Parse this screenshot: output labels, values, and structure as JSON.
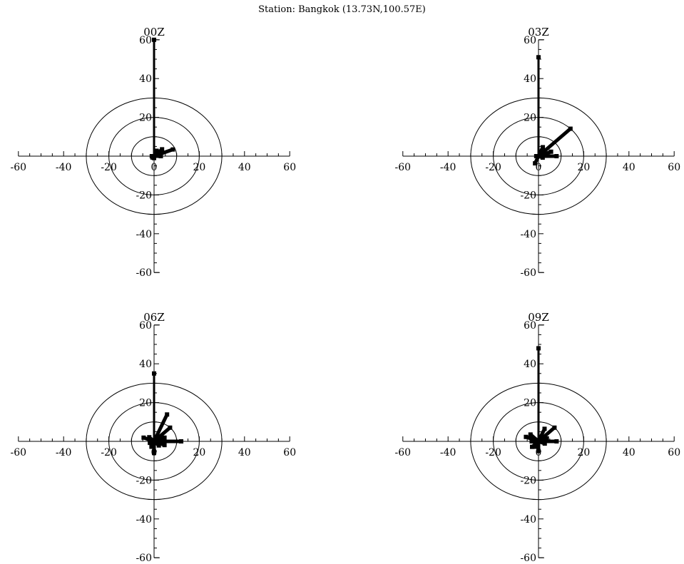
{
  "title": "Station: Bangkok (13.73N,100.57E)",
  "colors": {
    "ink": "#000000",
    "background": "#ffffff"
  },
  "chart_data": [
    {
      "type": "wind-rose",
      "panel_title": "00Z",
      "xlim": [
        -60,
        60
      ],
      "ylim": [
        -60,
        60
      ],
      "x_ticks": [
        -60,
        -40,
        -20,
        0,
        20,
        40,
        60
      ],
      "y_ticks": [
        -60,
        -40,
        -20,
        0,
        20,
        40,
        60
      ],
      "x_tick_labels": [
        "-60",
        "-40",
        "-20",
        "0",
        "20",
        "40",
        "60"
      ],
      "y_tick_labels": [
        "-60",
        "-40",
        "-20",
        "0",
        "20",
        "40",
        "60"
      ],
      "rings": [
        10,
        20,
        30
      ],
      "petals": [
        {
          "direction_deg": 0,
          "frequency": 60
        },
        {
          "direction_deg": 22.5,
          "frequency": 3
        },
        {
          "direction_deg": 45,
          "frequency": 5
        },
        {
          "direction_deg": 67.5,
          "frequency": 9
        },
        {
          "direction_deg": 90,
          "frequency": 3
        },
        {
          "direction_deg": 180,
          "frequency": 1
        },
        {
          "direction_deg": 225,
          "frequency": 1
        },
        {
          "direction_deg": 270,
          "frequency": 1
        }
      ]
    },
    {
      "type": "wind-rose",
      "panel_title": "03Z",
      "xlim": [
        -60,
        60
      ],
      "ylim": [
        -60,
        60
      ],
      "x_ticks": [
        -60,
        -40,
        -20,
        0,
        20,
        40,
        60
      ],
      "y_ticks": [
        -60,
        -40,
        -20,
        0,
        20,
        40,
        60
      ],
      "x_tick_labels": [
        "-60",
        "-40",
        "-20",
        "0",
        "20",
        "40",
        "60"
      ],
      "y_tick_labels": [
        "-60",
        "-40",
        "-20",
        "0",
        "20",
        "40",
        "60"
      ],
      "rings": [
        10,
        20,
        30
      ],
      "petals": [
        {
          "direction_deg": 0,
          "frequency": 51
        },
        {
          "direction_deg": 22.5,
          "frequency": 5
        },
        {
          "direction_deg": 45,
          "frequency": 20
        },
        {
          "direction_deg": 67.5,
          "frequency": 6
        },
        {
          "direction_deg": 90,
          "frequency": 8
        },
        {
          "direction_deg": 112.5,
          "frequency": 2
        },
        {
          "direction_deg": 202.5,
          "frequency": 4
        },
        {
          "direction_deg": 270,
          "frequency": 1
        }
      ]
    },
    {
      "type": "wind-rose",
      "panel_title": "06Z",
      "xlim": [
        -60,
        60
      ],
      "ylim": [
        -60,
        60
      ],
      "x_ticks": [
        -60,
        -40,
        -20,
        0,
        20,
        40,
        60
      ],
      "y_ticks": [
        -60,
        -40,
        -20,
        0,
        20,
        40,
        60
      ],
      "x_tick_labels": [
        "-60",
        "-40",
        "-20",
        "0",
        "20",
        "40",
        "60"
      ],
      "y_tick_labels": [
        "-60",
        "-40",
        "-20",
        "0",
        "20",
        "40",
        "60"
      ],
      "rings": [
        10,
        20,
        30
      ],
      "petals": [
        {
          "direction_deg": 0,
          "frequency": 35
        },
        {
          "direction_deg": 22.5,
          "frequency": 15
        },
        {
          "direction_deg": 45,
          "frequency": 10
        },
        {
          "direction_deg": 67.5,
          "frequency": 5
        },
        {
          "direction_deg": 90,
          "frequency": 12
        },
        {
          "direction_deg": 112.5,
          "frequency": 5
        },
        {
          "direction_deg": 135,
          "frequency": 3
        },
        {
          "direction_deg": 180,
          "frequency": 6
        },
        {
          "direction_deg": 202.5,
          "frequency": 3
        },
        {
          "direction_deg": 247.5,
          "frequency": 2
        },
        {
          "direction_deg": 292.5,
          "frequency": 5
        },
        {
          "direction_deg": 315,
          "frequency": 3
        }
      ]
    },
    {
      "type": "wind-rose",
      "panel_title": "09Z",
      "xlim": [
        -60,
        60
      ],
      "ylim": [
        -60,
        60
      ],
      "x_ticks": [
        -60,
        -40,
        -20,
        0,
        20,
        40,
        60
      ],
      "y_ticks": [
        -60,
        -40,
        -20,
        0,
        20,
        40,
        60
      ],
      "x_tick_labels": [
        "-60",
        "-40",
        "-20",
        "0",
        "20",
        "40",
        "60"
      ],
      "y_tick_labels": [
        "-60",
        "-40",
        "-20",
        "0",
        "20",
        "40",
        "60"
      ],
      "rings": [
        10,
        20,
        30
      ],
      "petals": [
        {
          "direction_deg": 0,
          "frequency": 48
        },
        {
          "direction_deg": 22.5,
          "frequency": 7
        },
        {
          "direction_deg": 45,
          "frequency": 10
        },
        {
          "direction_deg": 67.5,
          "frequency": 4
        },
        {
          "direction_deg": 90,
          "frequency": 8
        },
        {
          "direction_deg": 112.5,
          "frequency": 3
        },
        {
          "direction_deg": 180,
          "frequency": 5
        },
        {
          "direction_deg": 202.5,
          "frequency": 3
        },
        {
          "direction_deg": 225,
          "frequency": 4
        },
        {
          "direction_deg": 270,
          "frequency": 3
        },
        {
          "direction_deg": 292.5,
          "frequency": 6
        },
        {
          "direction_deg": 315,
          "frequency": 5
        }
      ]
    }
  ]
}
